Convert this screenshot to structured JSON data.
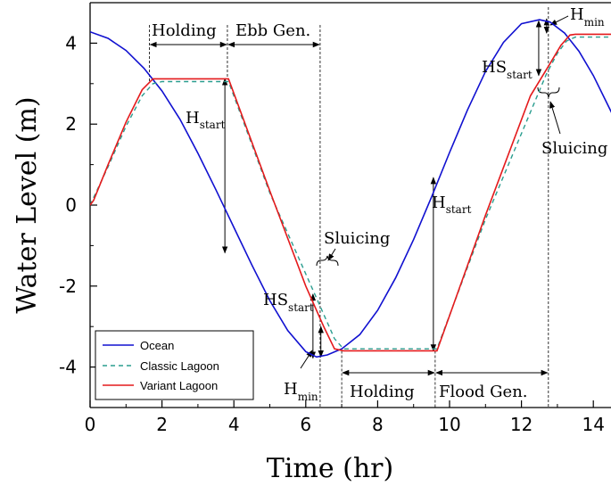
{
  "chart_data": {
    "type": "line",
    "title": "",
    "xlabel": "Time (hr)",
    "ylabel": "Water Level (m)",
    "xlim": [
      0,
      14.8
    ],
    "ylim": [
      -5,
      5
    ],
    "xticks": [
      0,
      2,
      4,
      6,
      8,
      10,
      12,
      14
    ],
    "yticks": [
      -4,
      -2,
      0,
      2,
      4
    ],
    "grid": false,
    "legend_position": "bottom-left",
    "series": [
      {
        "name": "Ocean",
        "color": "#1010d0",
        "style": "solid",
        "x": [
          0,
          0.5,
          1,
          1.5,
          2,
          2.5,
          3,
          3.5,
          4,
          4.5,
          5,
          5.5,
          6,
          6.3,
          6.6,
          7,
          7.5,
          8,
          8.5,
          9,
          9.5,
          10,
          10.5,
          11,
          11.5,
          12,
          12.5,
          12.8,
          13.2,
          13.6,
          14,
          14.5,
          14.8
        ],
        "y": [
          4.28,
          4.12,
          3.82,
          3.38,
          2.82,
          2.12,
          1.28,
          0.38,
          -0.55,
          -1.48,
          -2.36,
          -3.1,
          -3.62,
          -3.75,
          -3.7,
          -3.55,
          -3.2,
          -2.6,
          -1.8,
          -0.85,
          0.2,
          1.3,
          2.35,
          3.3,
          4.02,
          4.48,
          4.58,
          4.52,
          4.25,
          3.8,
          3.2,
          2.3,
          1.82
        ]
      },
      {
        "name": "Classic Lagoon",
        "color": "#2a9d8f",
        "style": "dashed",
        "x": [
          0,
          0.5,
          1.0,
          1.45,
          1.75,
          2.0,
          3.85,
          5.0,
          6.3,
          6.8,
          7.05,
          9.65,
          11.0,
          12.7,
          13.0,
          13.25,
          13.5,
          14.0,
          14.8
        ],
        "y": [
          0,
          0.95,
          1.95,
          2.7,
          3.0,
          3.05,
          3.05,
          0.3,
          -2.3,
          -3.3,
          -3.55,
          -3.55,
          -0.35,
          3.25,
          3.75,
          4.05,
          4.15,
          4.15,
          4.15
        ]
      },
      {
        "name": "Variant Lagoon",
        "color": "#e41a1c",
        "style": "solid",
        "x": [
          0,
          0.1,
          0.5,
          1.0,
          1.45,
          1.75,
          2.0,
          3.85,
          5.0,
          6.0,
          6.5,
          6.8,
          7.05,
          9.65,
          11.0,
          12.25,
          12.8,
          13.1,
          13.35,
          13.5,
          14.0,
          14.8
        ],
        "y": [
          0,
          0.12,
          1.0,
          2.05,
          2.85,
          3.12,
          3.12,
          3.12,
          0.35,
          -2.0,
          -3.0,
          -3.55,
          -3.6,
          -3.6,
          -0.25,
          2.7,
          3.5,
          3.95,
          4.2,
          4.22,
          4.22,
          4.22
        ]
      }
    ],
    "annotations": {
      "holding1": "Holding",
      "ebb_gen": "Ebb Gen.",
      "h_start1_main": "H",
      "h_start1_sub": "start",
      "sluicing1": "Sluicing",
      "hs_start1_main": "HS",
      "hs_start1_sub": "start",
      "h_min1_main": "H",
      "h_min1_sub": "min",
      "holding2": "Holding",
      "flood_gen": "Flood Gen.",
      "h_start2_main": "H",
      "h_start2_sub": "start",
      "hs_start2_main": "HS",
      "hs_start2_sub": "start",
      "h_min2_main": "H",
      "h_min2_sub": "min",
      "sluicing2": "Sluicing"
    }
  }
}
